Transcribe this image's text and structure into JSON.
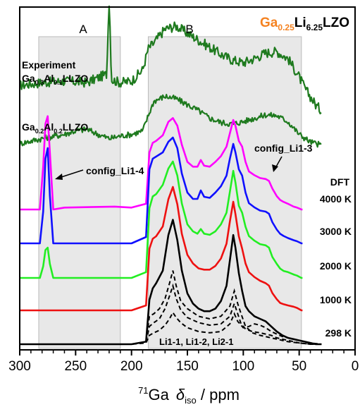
{
  "chart_data": {
    "type": "line",
    "title": {
      "prefix": "Ga",
      "sub1": "0.25",
      "mid": "Li",
      "sub2": "6.25",
      "suffix": "LZO"
    },
    "xlabel": {
      "sup": "71",
      "pre": "Ga",
      "sym": "δ",
      "sub": "iso",
      "post": " / ppm"
    },
    "xlim": [
      300,
      0
    ],
    "x_reversed": true,
    "x_ticks": [
      300,
      250,
      200,
      150,
      100,
      50,
      0
    ],
    "regions": [
      {
        "label": "A",
        "from": 283,
        "to": 210
      },
      {
        "label": "B",
        "from": 185,
        "to": 48
      }
    ],
    "colors": {
      "experiment": "#1e7a1e",
      "4000K": "#ff00ff",
      "3000K": "#1010ff",
      "2000K": "#22ee22",
      "1000K": "#ee1111",
      "298K": "#000000",
      "title_accent": "#f58220",
      "region_fill": "#e8e8e8"
    },
    "series": [
      {
        "name": "Experiment Ga0.3Al0.1LLZO",
        "key": "exp1",
        "color_key": "experiment",
        "noisy": true,
        "x": [
          300,
          280,
          260,
          240,
          222,
          221,
          220,
          219,
          218,
          210,
          200,
          190,
          185,
          180,
          170,
          160,
          150,
          140,
          130,
          120,
          110,
          100,
          90,
          80,
          70,
          60,
          50,
          45,
          40,
          35,
          30
        ],
        "y": [
          0.42,
          0.44,
          0.45,
          0.44,
          0.5,
          0.85,
          1.0,
          0.8,
          0.46,
          0.44,
          0.45,
          0.53,
          0.68,
          0.72,
          0.82,
          0.84,
          0.79,
          0.74,
          0.69,
          0.64,
          0.6,
          0.58,
          0.61,
          0.65,
          0.66,
          0.61,
          0.48,
          0.4,
          0.34,
          0.28,
          0.24
        ]
      },
      {
        "name": "Ga0.2Al0.2LLZO",
        "key": "exp2",
        "color_key": "experiment",
        "noisy": true,
        "x": [
          300,
          280,
          260,
          250,
          240,
          230,
          220,
          210,
          200,
          190,
          185,
          180,
          170,
          160,
          150,
          140,
          130,
          120,
          110,
          100,
          90,
          80,
          70,
          60,
          50,
          40,
          30
        ],
        "y": [
          0.22,
          0.28,
          0.33,
          0.37,
          0.39,
          0.33,
          0.28,
          0.31,
          0.33,
          0.37,
          0.55,
          0.72,
          0.78,
          0.75,
          0.68,
          0.61,
          0.52,
          0.47,
          0.45,
          0.48,
          0.52,
          0.56,
          0.55,
          0.48,
          0.33,
          0.24,
          0.2
        ]
      },
      {
        "name": "4000 K",
        "key": "4000K",
        "color_key": "4000K",
        "noisy": false,
        "x": [
          300,
          282,
          279,
          277,
          275,
          273,
          270,
          260,
          215,
          200,
          187,
          184,
          181,
          178,
          172,
          167,
          163,
          159,
          155,
          150,
          145,
          141,
          138,
          135,
          130,
          125,
          120,
          115,
          112,
          109,
          107,
          104,
          101,
          98,
          95,
          90,
          85,
          80,
          77,
          74,
          70,
          67,
          64,
          60,
          55,
          52,
          50,
          48,
          47
        ],
        "y": [
          0,
          0,
          0.45,
          0.9,
          0.98,
          0.6,
          0,
          0.02,
          0.03,
          0.02,
          0.06,
          0.6,
          0.7,
          0.72,
          0.78,
          0.92,
          0.96,
          0.88,
          0.68,
          0.5,
          0.45,
          0.45,
          0.52,
          0.46,
          0.45,
          0.5,
          0.56,
          0.66,
          0.8,
          0.94,
          0.88,
          0.72,
          0.66,
          0.5,
          0.4,
          0.36,
          0.33,
          0.32,
          0.3,
          0.22,
          0.14,
          0.1,
          0.08,
          0.06,
          0.03,
          0.02,
          0.01,
          0,
          0
        ]
      },
      {
        "name": "3000 K",
        "key": "3000K",
        "color_key": "3000K",
        "noisy": false,
        "x": [
          300,
          282,
          279,
          277,
          275,
          273,
          270,
          260,
          200,
          187,
          184,
          181,
          178,
          172,
          167,
          163,
          159,
          155,
          150,
          145,
          141,
          138,
          135,
          130,
          125,
          120,
          115,
          112,
          109,
          107,
          104,
          101,
          98,
          95,
          90,
          85,
          80,
          77,
          74,
          70,
          67,
          64,
          60,
          55,
          52,
          50,
          48,
          47
        ],
        "y": [
          0,
          0,
          0.3,
          0.8,
          0.9,
          0.45,
          0,
          0,
          0,
          0.06,
          0.7,
          0.8,
          0.82,
          0.86,
          0.96,
          1.0,
          0.9,
          0.66,
          0.48,
          0.42,
          0.42,
          0.5,
          0.44,
          0.43,
          0.48,
          0.54,
          0.64,
          0.8,
          0.94,
          0.86,
          0.7,
          0.64,
          0.48,
          0.38,
          0.34,
          0.31,
          0.3,
          0.28,
          0.2,
          0.13,
          0.09,
          0.07,
          0.05,
          0.03,
          0.02,
          0.01,
          0,
          0
        ]
      },
      {
        "name": "2000 K",
        "key": "2000K",
        "color_key": "2000K",
        "noisy": false,
        "x": [
          300,
          282,
          279,
          277,
          275,
          273,
          270,
          260,
          200,
          187,
          184,
          181,
          178,
          172,
          167,
          163,
          159,
          155,
          150,
          145,
          141,
          138,
          135,
          130,
          125,
          120,
          115,
          112,
          109,
          107,
          104,
          101,
          98,
          95,
          90,
          85,
          80,
          77,
          74,
          70,
          67,
          64,
          60,
          55,
          52,
          50,
          48,
          47
        ],
        "y": [
          0,
          0,
          0.1,
          0.24,
          0.26,
          0.12,
          0,
          0,
          0,
          0.05,
          0.6,
          0.7,
          0.72,
          0.8,
          0.94,
          1.0,
          0.88,
          0.64,
          0.46,
          0.4,
          0.38,
          0.42,
          0.38,
          0.37,
          0.4,
          0.46,
          0.56,
          0.74,
          0.92,
          0.82,
          0.62,
          0.56,
          0.44,
          0.36,
          0.32,
          0.29,
          0.28,
          0.26,
          0.18,
          0.12,
          0.08,
          0.06,
          0.05,
          0.03,
          0.02,
          0.01,
          0,
          0
        ]
      },
      {
        "name": "1000 K",
        "key": "1000K",
        "color_key": "1000K",
        "noisy": false,
        "x": [
          300,
          200,
          187,
          184,
          181,
          178,
          172,
          167,
          163,
          159,
          155,
          150,
          145,
          140,
          135,
          130,
          125,
          120,
          115,
          112,
          109,
          107,
          104,
          101,
          98,
          95,
          90,
          85,
          80,
          77,
          74,
          70,
          67,
          64,
          60,
          55,
          52,
          50,
          48,
          47
        ],
        "y": [
          0,
          0,
          0.04,
          0.5,
          0.58,
          0.6,
          0.68,
          0.9,
          1.0,
          0.86,
          0.62,
          0.45,
          0.38,
          0.34,
          0.33,
          0.33,
          0.36,
          0.42,
          0.54,
          0.72,
          0.88,
          0.78,
          0.6,
          0.5,
          0.38,
          0.31,
          0.27,
          0.24,
          0.22,
          0.2,
          0.14,
          0.09,
          0.06,
          0.05,
          0.04,
          0.03,
          0.02,
          0.01,
          0,
          0
        ]
      },
      {
        "name": "298 K",
        "key": "298K",
        "color_key": "298K",
        "noisy": false,
        "x": [
          300,
          200,
          187,
          184,
          181,
          178,
          172,
          167,
          163,
          159,
          155,
          150,
          145,
          140,
          135,
          130,
          125,
          120,
          115,
          112,
          109,
          107,
          104,
          101,
          98,
          95,
          90,
          85,
          80,
          75,
          70,
          65,
          60,
          55,
          50,
          45,
          40,
          35,
          30
        ],
        "y": [
          0,
          0,
          0.02,
          0.35,
          0.44,
          0.48,
          0.58,
          0.86,
          0.98,
          0.82,
          0.58,
          0.4,
          0.32,
          0.28,
          0.26,
          0.26,
          0.28,
          0.34,
          0.46,
          0.66,
          0.86,
          0.76,
          0.56,
          0.42,
          0.3,
          0.26,
          0.22,
          0.2,
          0.18,
          0.14,
          0.1,
          0.07,
          0.05,
          0.04,
          0.03,
          0.02,
          0.01,
          0,
          0
        ]
      }
    ],
    "dashed_components": [
      {
        "x": [
          300,
          200,
          187,
          184,
          180,
          175,
          170,
          166,
          163,
          160,
          156,
          150,
          140,
          130,
          120,
          112,
          108,
          105,
          102,
          98,
          92,
          85,
          80,
          75,
          70,
          60,
          50,
          40,
          30
        ],
        "y": [
          0,
          0,
          0.02,
          0.22,
          0.24,
          0.28,
          0.36,
          0.48,
          0.58,
          0.46,
          0.34,
          0.28,
          0.22,
          0.2,
          0.22,
          0.3,
          0.42,
          0.32,
          0.24,
          0.14,
          0.09,
          0.07,
          0.06,
          0.05,
          0.04,
          0.02,
          0.01,
          0,
          0
        ]
      },
      {
        "x": [
          300,
          200,
          187,
          184,
          180,
          175,
          170,
          166,
          163,
          160,
          156,
          150,
          140,
          130,
          120,
          112,
          108,
          105,
          102,
          98,
          92,
          85,
          80,
          75,
          70,
          60,
          50,
          40,
          30
        ],
        "y": [
          0,
          0,
          0.02,
          0.14,
          0.17,
          0.2,
          0.28,
          0.38,
          0.46,
          0.36,
          0.27,
          0.21,
          0.17,
          0.15,
          0.16,
          0.22,
          0.32,
          0.24,
          0.16,
          0.12,
          0.1,
          0.09,
          0.08,
          0.07,
          0.05,
          0.03,
          0.01,
          0,
          0
        ]
      },
      {
        "x": [
          300,
          200,
          187,
          184,
          180,
          175,
          170,
          166,
          163,
          160,
          156,
          150,
          140,
          130,
          120,
          112,
          108,
          105,
          100,
          95,
          90,
          85,
          80,
          75,
          70,
          65,
          60,
          55,
          50,
          40,
          30
        ],
        "y": [
          0,
          0,
          0.01,
          0.07,
          0.09,
          0.11,
          0.15,
          0.2,
          0.25,
          0.21,
          0.17,
          0.13,
          0.1,
          0.09,
          0.1,
          0.16,
          0.24,
          0.18,
          0.13,
          0.14,
          0.16,
          0.15,
          0.13,
          0.1,
          0.08,
          0.06,
          0.05,
          0.04,
          0.03,
          0.01,
          0
        ]
      }
    ],
    "labels": {
      "region_a": "A",
      "region_b": "B",
      "experiment_label": "Experiment",
      "exp1_label": {
        "a": "Ga",
        "a_sub": "0.3",
        "b": "Al",
        "b_sub": "0.1",
        "c": "LLZO"
      },
      "exp2_label": {
        "a": "Ga",
        "a_sub": "0.2",
        "b": "Al",
        "b_sub": "0.2",
        "c": "LLZO"
      },
      "config_left": "config_Li1-4",
      "config_right": "config_Li1-3",
      "dft": "DFT",
      "temp_4000": "4000 K",
      "temp_3000": "3000 K",
      "temp_2000": "2000 K",
      "temp_1000": "1000 K",
      "temp_298": "298 K",
      "components": "Li1-1, Li1-2, Li2-1"
    }
  }
}
